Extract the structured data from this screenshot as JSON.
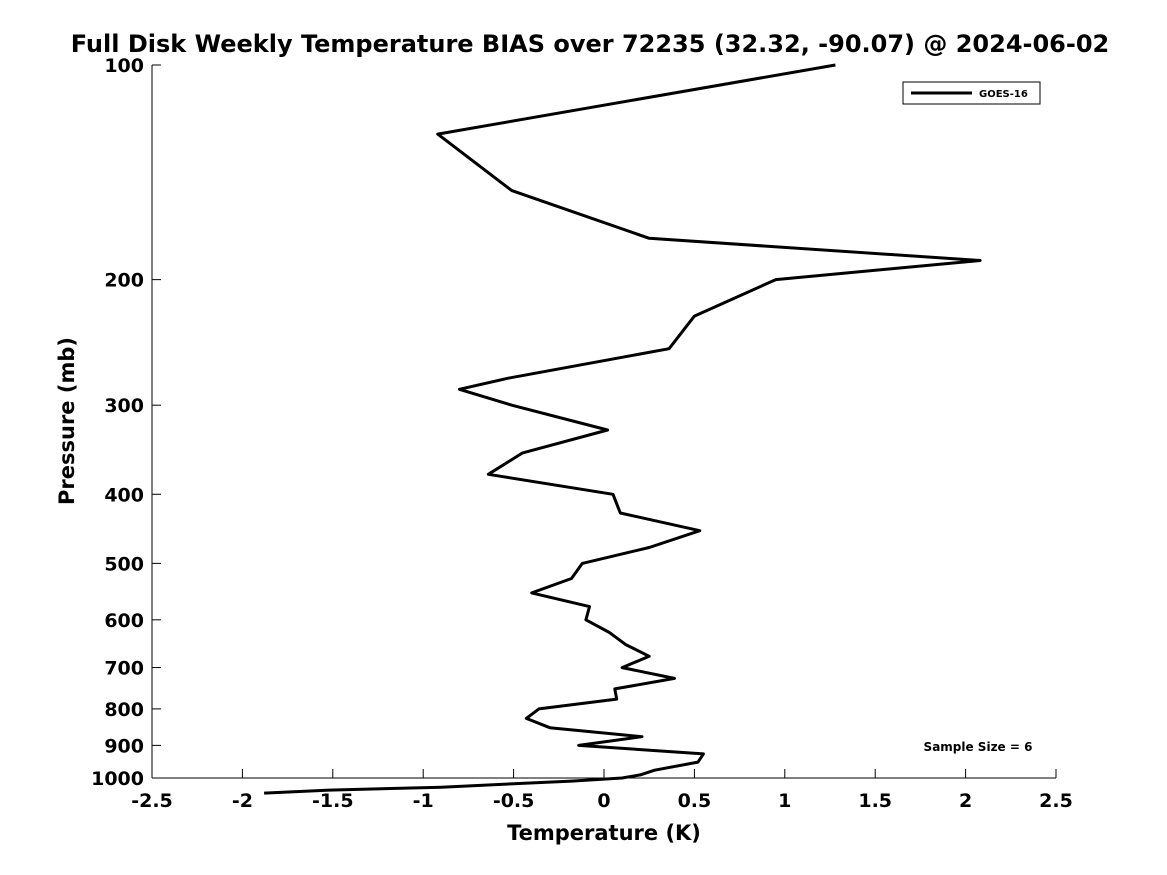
{
  "chart_data": {
    "type": "line",
    "title": "Full Disk Weekly Temperature BIAS over 72235 (32.32, -90.07) @ 2024-06-02",
    "xlabel": "Temperature (K)",
    "ylabel": "Pressure (mb)",
    "xlim": [
      -2.5,
      2.5
    ],
    "ylim": [
      100,
      1000
    ],
    "y_scale": "log",
    "y_reversed": true,
    "x_ticks": [
      -2.5,
      -2,
      -1.5,
      -1,
      -0.5,
      0,
      0.5,
      1,
      1.5,
      2,
      2.5
    ],
    "x_tick_labels": [
      "-2.5",
      "-2",
      "-1.5",
      "-1",
      "-0.5",
      "0",
      "0.5",
      "1",
      "1.5",
      "2",
      "2.5"
    ],
    "y_ticks": [
      100,
      200,
      300,
      400,
      500,
      600,
      700,
      800,
      900,
      1000
    ],
    "y_tick_labels": [
      "100",
      "200",
      "300",
      "400",
      "500",
      "600",
      "700",
      "800",
      "900",
      "1000"
    ],
    "grid": false,
    "legend_position": "top-right",
    "annotation": "Sample Size = 6",
    "series": [
      {
        "name": "GOES-16",
        "color": "#000000",
        "points": [
          [
            1.28,
            100
          ],
          [
            -0.92,
            125
          ],
          [
            -0.51,
            150
          ],
          [
            0.25,
            175
          ],
          [
            2.08,
            188
          ],
          [
            0.95,
            200
          ],
          [
            0.5,
            225
          ],
          [
            0.36,
            250
          ],
          [
            -0.53,
            275
          ],
          [
            -0.8,
            285
          ],
          [
            -0.51,
            300
          ],
          [
            0.02,
            325
          ],
          [
            -0.45,
            350
          ],
          [
            -0.64,
            375
          ],
          [
            0.05,
            400
          ],
          [
            0.09,
            425
          ],
          [
            0.53,
            450
          ],
          [
            0.25,
            475
          ],
          [
            -0.12,
            500
          ],
          [
            -0.18,
            525
          ],
          [
            -0.4,
            550
          ],
          [
            -0.08,
            575
          ],
          [
            -0.1,
            600
          ],
          [
            0.03,
            625
          ],
          [
            0.12,
            650
          ],
          [
            0.25,
            675
          ],
          [
            0.1,
            700
          ],
          [
            0.39,
            725
          ],
          [
            0.06,
            750
          ],
          [
            0.07,
            775
          ],
          [
            -0.36,
            800
          ],
          [
            -0.43,
            825
          ],
          [
            -0.3,
            850
          ],
          [
            0.21,
            875
          ],
          [
            -0.14,
            900
          ],
          [
            0.55,
            925
          ],
          [
            0.52,
            950
          ],
          [
            0.28,
            975
          ],
          [
            0.2,
            990
          ],
          [
            0.1,
            1000
          ],
          [
            -0.18,
            1010
          ],
          [
            -0.54,
            1020
          ],
          [
            -0.9,
            1030
          ],
          [
            -1.52,
            1040
          ],
          [
            -1.88,
            1050
          ]
        ]
      }
    ]
  }
}
